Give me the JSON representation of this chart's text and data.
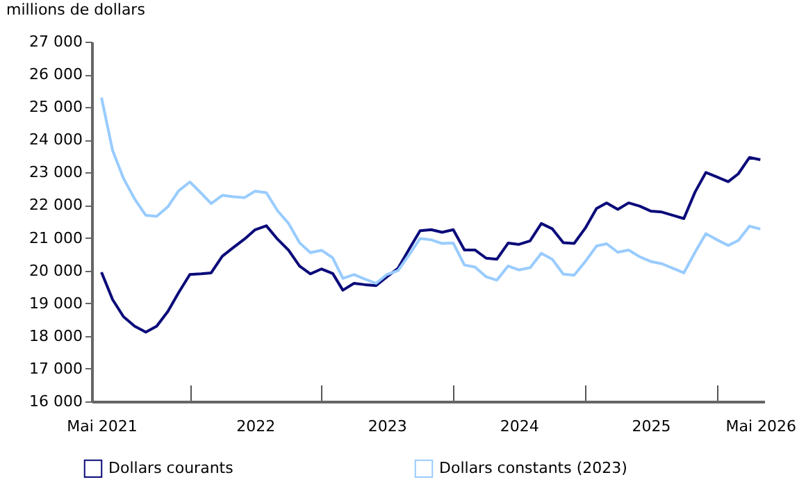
{
  "chart_data": {
    "type": "line",
    "ylabel": "millions de dollars",
    "legend": "bottom",
    "x": [
      "2021-05",
      "2021-06",
      "2021-07",
      "2021-08",
      "2021-09",
      "2021-10",
      "2021-11",
      "2021-12",
      "2022-01",
      "2022-02",
      "2022-03",
      "2022-04",
      "2022-05",
      "2022-06",
      "2022-07",
      "2022-08",
      "2022-09",
      "2022-10",
      "2022-11",
      "2022-12",
      "2023-01",
      "2023-02",
      "2023-03",
      "2023-04",
      "2023-05",
      "2023-06",
      "2023-07",
      "2023-08",
      "2023-09",
      "2023-10",
      "2023-11",
      "2023-12",
      "2024-01",
      "2024-02",
      "2024-03",
      "2024-04",
      "2024-05",
      "2024-06",
      "2024-07",
      "2024-08",
      "2024-09",
      "2024-10",
      "2024-11",
      "2024-12",
      "2025-01",
      "2025-02",
      "2025-03",
      "2025-04",
      "2025-05",
      "2025-06",
      "2025-07",
      "2025-08",
      "2025-09",
      "2025-10",
      "2025-11",
      "2025-12",
      "2026-01",
      "2026-02",
      "2026-03",
      "2026-04",
      "2026-05"
    ],
    "series": [
      {
        "name": "Dollars courants",
        "color": "#0b0b7a",
        "values": [
          19950,
          19110,
          18590,
          18300,
          18120,
          18300,
          18750,
          19330,
          19880,
          19900,
          19930,
          20440,
          20700,
          20960,
          21250,
          21370,
          20960,
          20630,
          20140,
          19900,
          20050,
          19910,
          19400,
          19610,
          19570,
          19540,
          19810,
          20070,
          20660,
          21220,
          21250,
          21170,
          21250,
          20630,
          20630,
          20380,
          20350,
          20840,
          20800,
          20910,
          21440,
          21280,
          20850,
          20830,
          21300,
          21900,
          22070,
          21870,
          22070,
          21970,
          21820,
          21790,
          21690,
          21590,
          22400,
          23000,
          22860,
          22720,
          22960,
          23460,
          23390
        ]
      },
      {
        "name": "Dollars constants (2023)",
        "color": "#99ccff",
        "values": [
          25290,
          23670,
          22820,
          22190,
          21690,
          21660,
          21950,
          22440,
          22710,
          22370,
          22050,
          22300,
          22260,
          22230,
          22430,
          22380,
          21830,
          21450,
          20850,
          20550,
          20620,
          20390,
          19760,
          19880,
          19740,
          19610,
          19880,
          20000,
          20490,
          20980,
          20940,
          20830,
          20840,
          20170,
          20110,
          19810,
          19710,
          20140,
          20020,
          20090,
          20530,
          20350,
          19890,
          19860,
          20280,
          20750,
          20820,
          20560,
          20630,
          20420,
          20280,
          20210,
          20070,
          19930,
          20560,
          21130,
          20940,
          20770,
          20920,
          21360,
          21270
        ]
      }
    ],
    "xlim": [
      "2021-04-04",
      "2026-05-12"
    ],
    "xticks": [
      {
        "value": "2021-05",
        "label": "Mai 2021"
      },
      {
        "value": "2022-01",
        "label": null
      },
      {
        "value": "2022-07",
        "label": "2022"
      },
      {
        "value": "2023-01",
        "label": null
      },
      {
        "value": "2023-07",
        "label": "2023"
      },
      {
        "value": "2024-01",
        "label": null
      },
      {
        "value": "2024-07",
        "label": "2024"
      },
      {
        "value": "2025-01",
        "label": null
      },
      {
        "value": "2025-07",
        "label": "2025"
      },
      {
        "value": "2026-01",
        "label": null
      },
      {
        "value": "2026-05",
        "label": "Mai 2026"
      }
    ],
    "ylim": [
      16000,
      27000
    ],
    "yticks": [
      {
        "value": 16000,
        "label": "16 000"
      },
      {
        "value": 17000,
        "label": "17 000"
      },
      {
        "value": 18000,
        "label": "18 000"
      },
      {
        "value": 19000,
        "label": "19 000"
      },
      {
        "value": 20000,
        "label": "20 000"
      },
      {
        "value": 21000,
        "label": "21 000"
      },
      {
        "value": 22000,
        "label": "22 000"
      },
      {
        "value": 23000,
        "label": "23 000"
      },
      {
        "value": 24000,
        "label": "24 000"
      },
      {
        "value": 25000,
        "label": "25 000"
      },
      {
        "value": 26000,
        "label": "26 000"
      },
      {
        "value": 27000,
        "label": "27 000"
      }
    ]
  }
}
